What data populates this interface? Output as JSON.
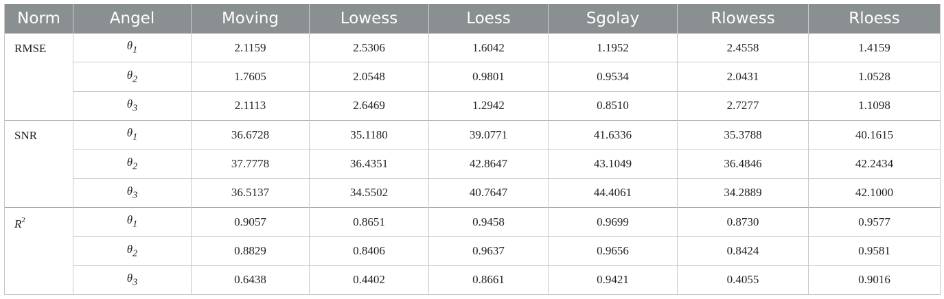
{
  "headers": [
    "Norm",
    "Angel",
    "Moving",
    "Lowess",
    "Loess",
    "Sgolay",
    "Rlowess",
    "Rloess"
  ],
  "groups": [
    {
      "norm": "RMSE",
      "rows": [
        {
          "angle": "θ",
          "sub": "1",
          "values": [
            "2.1159",
            "2.5306",
            "1.6042",
            "1.1952",
            "2.4558",
            "1.4159"
          ]
        },
        {
          "angle": "θ",
          "sub": "2",
          "values": [
            "1.7605",
            "2.0548",
            "0.9801",
            "0.9534",
            "2.0431",
            "1.0528"
          ]
        },
        {
          "angle": "θ",
          "sub": "3",
          "values": [
            "2.1113",
            "2.6469",
            "1.2942",
            "0.8510",
            "2.7277",
            "1.1098"
          ]
        }
      ]
    },
    {
      "norm": "SNR",
      "rows": [
        {
          "angle": "θ",
          "sub": "1",
          "values": [
            "36.6728",
            "35.1180",
            "39.0771",
            "41.6336",
            "35.3788",
            "40.1615"
          ]
        },
        {
          "angle": "θ",
          "sub": "2",
          "values": [
            "37.7778",
            "36.4351",
            "42.8647",
            "43.1049",
            "36.4846",
            "42.2434"
          ]
        },
        {
          "angle": "θ",
          "sub": "3",
          "values": [
            "36.5137",
            "34.5502",
            "40.7647",
            "44.4061",
            "34.2889",
            "42.1000"
          ]
        }
      ]
    },
    {
      "norm": "R",
      "norm_sup": "2",
      "rows": [
        {
          "angle": "θ",
          "sub": "1",
          "values": [
            "0.9057",
            "0.8651",
            "0.9458",
            "0.9699",
            "0.8730",
            "0.9577"
          ]
        },
        {
          "angle": "θ",
          "sub": "2",
          "values": [
            "0.8829",
            "0.8406",
            "0.9637",
            "0.9656",
            "0.8424",
            "0.9581"
          ]
        },
        {
          "angle": "θ",
          "sub": "3",
          "values": [
            "0.6438",
            "0.4402",
            "0.8661",
            "0.9421",
            "0.4055",
            "0.9016"
          ]
        }
      ]
    }
  ]
}
